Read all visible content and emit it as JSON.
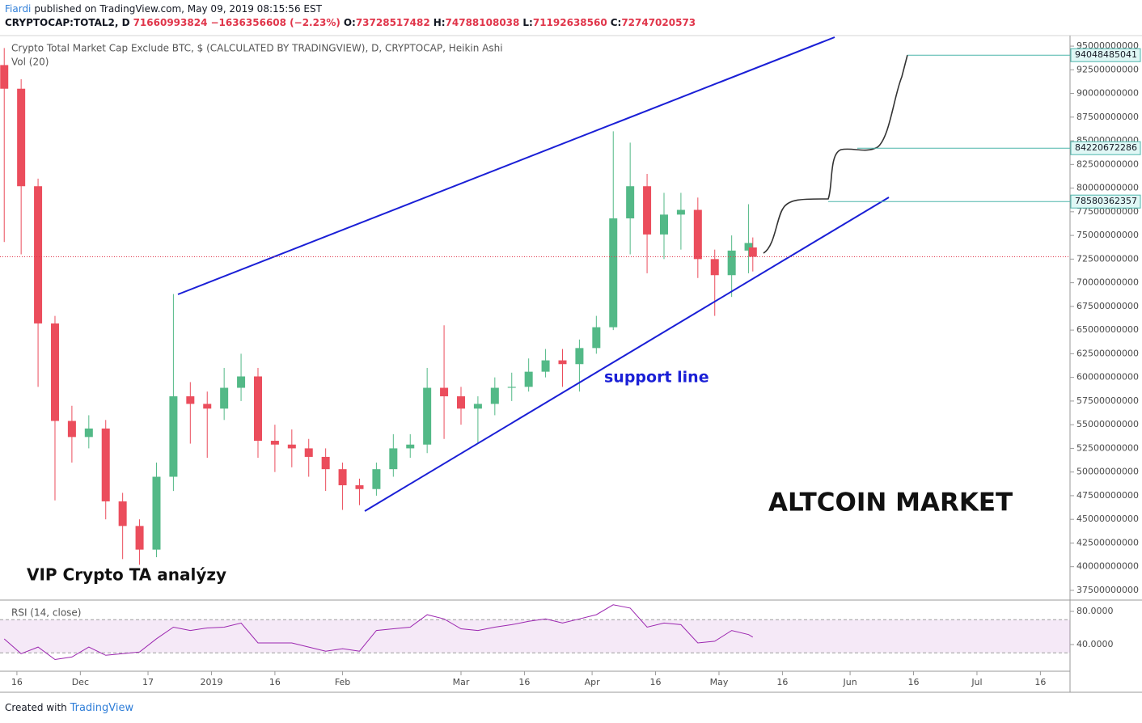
{
  "header": {
    "author": "Fiardi",
    "published": "published on TradingView.com, May 09, 2019 08:15:56 EST",
    "symbol": "CRYPTOCAP:TOTAL2, D",
    "last": "71660993824",
    "change": "−1636356608 (−2.23%)",
    "ohlc": [
      {
        "label": "O:",
        "value": "73728517482"
      },
      {
        "label": "H:",
        "value": "74788108038"
      },
      {
        "label": "L:",
        "value": "71192638560"
      },
      {
        "label": "C:",
        "value": "72747020573"
      }
    ]
  },
  "footer": {
    "text": "Created with",
    "brand": "TradingView"
  },
  "chart_data": {
    "type": "candlestick",
    "title": "Crypto Total Market Cap Exclude BTC, $ (CALCULATED BY TRADINGVIEW), D, CRYPTOCAP, Heikin Ashi",
    "volume_label": "Vol (20)",
    "up_color": "#53b987",
    "down_color": "#eb4d5c",
    "x": [
      "2018-11-13",
      "2018-11-17",
      "2018-11-21",
      "2018-11-25",
      "2018-11-29",
      "2018-12-03",
      "2018-12-07",
      "2018-12-11",
      "2018-12-15",
      "2018-12-19",
      "2018-12-23",
      "2018-12-27",
      "2018-12-31",
      "2019-01-04",
      "2019-01-08",
      "2019-01-12",
      "2019-01-16",
      "2019-01-20",
      "2019-01-24",
      "2019-01-28",
      "2019-02-01",
      "2019-02-05",
      "2019-02-09",
      "2019-02-13",
      "2019-02-17",
      "2019-02-21",
      "2019-02-25",
      "2019-03-01",
      "2019-03-05",
      "2019-03-09",
      "2019-03-13",
      "2019-03-17",
      "2019-03-21",
      "2019-03-25",
      "2019-03-29",
      "2019-04-02",
      "2019-04-06",
      "2019-04-10",
      "2019-04-14",
      "2019-04-18",
      "2019-04-22",
      "2019-04-26",
      "2019-04-30",
      "2019-05-04",
      "2019-05-08",
      "2019-05-09"
    ],
    "open": [
      93000000000.0,
      90500000000.0,
      80200000000.0,
      65700000000.0,
      55400000000.0,
      53700000000.0,
      54600000000.0,
      46900000000.0,
      44300000000.0,
      41800000000.0,
      49500000000.0,
      58000000000.0,
      57200000000.0,
      56700000000.0,
      58900000000.0,
      60100000000.0,
      53300000000.0,
      52900000000.0,
      52500000000.0,
      51600000000.0,
      50300000000.0,
      48600000000.0,
      48200000000.0,
      50300000000.0,
      52500000000.0,
      52900000000.0,
      58900000000.0,
      58000000000.0,
      56700000000.0,
      57200000000.0,
      58900000000.0,
      59000000000.0,
      60600000000.0,
      61800000000.0,
      61400000000.0,
      63100000000.0,
      65300000000.0,
      76800000000.0,
      80200000000.0,
      75100000000.0,
      77200000000.0,
      77700000000.0,
      72500000000.0,
      70800000000.0,
      73400000000.0,
      73728517482
    ],
    "high": [
      94800000000.0,
      91500000000.0,
      81000000000.0,
      66500000000.0,
      57000000000.0,
      56000000000.0,
      55500000000.0,
      47800000000.0,
      45000000000.0,
      51000000000.0,
      68800000000.0,
      59500000000.0,
      58500000000.0,
      61000000000.0,
      62500000000.0,
      61000000000.0,
      55000000000.0,
      54500000000.0,
      53500000000.0,
      52500000000.0,
      51000000000.0,
      49300000000.0,
      51000000000.0,
      54000000000.0,
      54000000000.0,
      61000000000.0,
      65500000000.0,
      59000000000.0,
      58000000000.0,
      60000000000.0,
      60500000000.0,
      62000000000.0,
      63000000000.0,
      63000000000.0,
      64000000000.0,
      66500000000.0,
      86000000000.0,
      84800000000.0,
      81500000000.0,
      79500000000.0,
      79500000000.0,
      79000000000.0,
      73500000000.0,
      75000000000.0,
      78300000000.0,
      74788108038
    ],
    "low": [
      74300000000.0,
      73000000000.0,
      59000000000.0,
      47000000000.0,
      51000000000.0,
      52500000000.0,
      45000000000.0,
      40800000000.0,
      40200000000.0,
      41000000000.0,
      48000000000.0,
      53000000000.0,
      51500000000.0,
      55500000000.0,
      57500000000.0,
      51500000000.0,
      50000000000.0,
      50500000000.0,
      49500000000.0,
      48000000000.0,
      46000000000.0,
      46500000000.0,
      47500000000.0,
      49500000000.0,
      51500000000.0,
      52000000000.0,
      53500000000.0,
      55000000000.0,
      53000000000.0,
      56000000000.0,
      57500000000.0,
      58500000000.0,
      60000000000.0,
      59000000000.0,
      58500000000.0,
      62500000000.0,
      65000000000.0,
      73000000000.0,
      71000000000.0,
      72500000000.0,
      73500000000.0,
      70500000000.0,
      66500000000.0,
      68500000000.0,
      71000000000.0,
      71192638560
    ],
    "close": [
      90500000000.0,
      80200000000.0,
      65700000000.0,
      55400000000.0,
      53700000000.0,
      54600000000.0,
      46900000000.0,
      44300000000.0,
      41800000000.0,
      49500000000.0,
      58000000000.0,
      57200000000.0,
      56700000000.0,
      58900000000.0,
      60100000000.0,
      53300000000.0,
      52900000000.0,
      52500000000.0,
      51600000000.0,
      50300000000.0,
      48600000000.0,
      48200000000.0,
      50300000000.0,
      52500000000.0,
      52900000000.0,
      58900000000.0,
      58000000000.0,
      56700000000.0,
      57200000000.0,
      58900000000.0,
      59000000000.0,
      60600000000.0,
      61800000000.0,
      61400000000.0,
      63100000000.0,
      65300000000.0,
      76800000000.0,
      80200000000.0,
      75100000000.0,
      77200000000.0,
      77700000000.0,
      72500000000.0,
      70800000000.0,
      73400000000.0,
      74200000000.0,
      72747020573
    ],
    "ylim": [
      36470000000.0,
      96030000000.0
    ],
    "yticks": [
      37500000000,
      40000000000,
      42500000000,
      45000000000,
      47500000000,
      50000000000,
      52500000000,
      55000000000,
      57500000000,
      60000000000,
      62500000000,
      65000000000,
      67500000000,
      70000000000,
      72500000000,
      75000000000,
      77500000000,
      80000000000,
      82500000000,
      85000000000,
      87500000000,
      90000000000,
      92500000000,
      95000000000
    ],
    "xlim": [
      "2018-11-12",
      "2019-07-23"
    ],
    "xticks": [
      {
        "value": "2018-11-16",
        "label": "16"
      },
      {
        "value": "2018-12-01",
        "label": "Dec"
      },
      {
        "value": "2018-12-17",
        "label": "17"
      },
      {
        "value": "2019-01-01",
        "label": "2019"
      },
      {
        "value": "2019-01-16",
        "label": "16"
      },
      {
        "value": "2019-02-01",
        "label": "Feb"
      },
      {
        "value": "2019-03-01",
        "label": "Mar"
      },
      {
        "value": "2019-03-16",
        "label": "16"
      },
      {
        "value": "2019-04-01",
        "label": "Apr"
      },
      {
        "value": "2019-04-16",
        "label": "16"
      },
      {
        "value": "2019-05-01",
        "label": "May"
      },
      {
        "value": "2019-05-16",
        "label": "16"
      },
      {
        "value": "2019-06-01",
        "label": "Jun"
      },
      {
        "value": "2019-06-16",
        "label": "16"
      },
      {
        "value": "2019-07-01",
        "label": "Jul"
      },
      {
        "value": "2019-07-16",
        "label": "16"
      }
    ],
    "price_labels": [
      94048485041,
      84220672286,
      78580362357
    ],
    "annotations": {
      "support": "support line",
      "market": "ALTCOIN MARKET",
      "promo": "VIP Crypto TA analýzy"
    },
    "rsi": {
      "name": "RSI (14, close)",
      "color": "#9c27b0",
      "values": [
        46.8,
        29,
        37,
        22,
        25,
        37,
        27,
        29,
        31,
        47,
        61,
        57,
        60,
        61,
        66,
        42,
        42,
        42,
        37,
        32,
        35,
        32,
        57,
        59,
        61,
        76,
        71,
        59,
        57,
        61,
        64,
        68,
        71,
        66,
        71,
        76,
        88,
        84,
        61,
        66,
        64,
        42,
        44,
        57,
        52,
        49
      ],
      "ylim": [
        7.8,
        93.7
      ],
      "band": [
        30,
        70
      ],
      "yticks": [
        {
          "value": 80,
          "label": "80.0000"
        },
        {
          "value": 40,
          "label": "40.0000"
        }
      ]
    }
  }
}
